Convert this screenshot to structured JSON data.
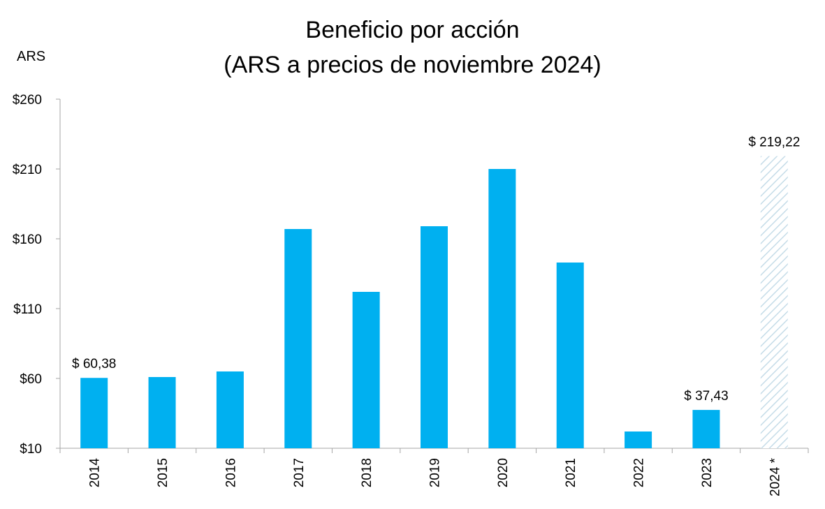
{
  "chart_data": {
    "type": "bar",
    "title": "Beneficio por acción",
    "subtitle": "(ARS a precios de noviembre 2024)",
    "ylabel": "ARS",
    "xlabel": "",
    "ylim": [
      10,
      260
    ],
    "yticks": [
      10,
      60,
      110,
      160,
      210,
      260
    ],
    "ytick_labels": [
      "$10",
      "$60",
      "$110",
      "$160",
      "$210",
      "$260"
    ],
    "categories": [
      "2014",
      "2015",
      "2016",
      "2017",
      "2018",
      "2019",
      "2020",
      "2021",
      "2022",
      "2023",
      "2024 *"
    ],
    "values": [
      60.38,
      61,
      65,
      167,
      122,
      169,
      210,
      143,
      22,
      37.43,
      219.22
    ],
    "estimated": [
      false,
      false,
      false,
      false,
      false,
      false,
      false,
      false,
      false,
      false,
      true
    ],
    "data_labels": [
      "$ 60,38",
      "",
      "",
      "",
      "",
      "",
      "",
      "",
      "",
      "$ 37,43",
      "$ 219,22"
    ],
    "colors": {
      "bar": "#00B0F0",
      "estimate_hatch": "#C5DCE8",
      "axis": "#A6A6A6"
    },
    "grid": false,
    "legend": "none"
  }
}
